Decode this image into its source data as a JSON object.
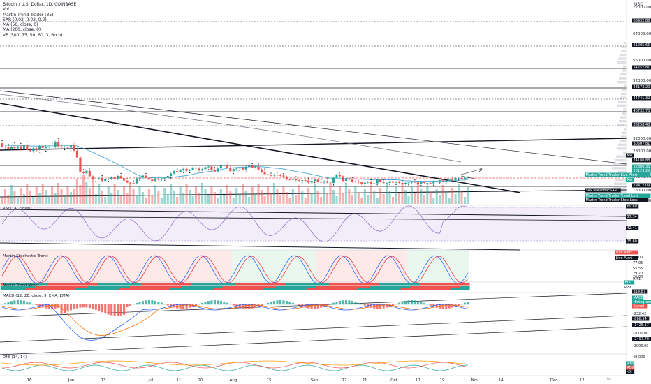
{
  "symbol_title": "Bitcoin / U.S. Dollar, 1D, COINBASE",
  "currency": "USD",
  "indicators": [
    "Vol",
    "Martin Trend Trader (35)",
    "SAR (0.02, 0.02, 0.2)",
    "MA (50, close, 0)",
    "MA (200, close, 0)",
    "VP (500, 75, 50, 60, 3, Both)"
  ],
  "panes": {
    "rsi": "RSI (14, close)",
    "stoch": "Martin Stochastic Trend",
    "meter": "Martin Trend Meter",
    "macd": "MACD (12, 26, close, 9, EMA, EMA)",
    "dmi": "DMI (14, 14)"
  },
  "colors": {
    "up": "#26a69a",
    "down": "#ef5350",
    "ma50": "#4aa8d8",
    "ma200": "#787b86",
    "rsi_line": "#7e57c2",
    "stoch_k": "#2962ff",
    "stoch_d": "#f23645",
    "macd_line": "#2962ff",
    "signal_line": "#ff6d00",
    "label_teal": "#26a69a",
    "label_dark": "#131722"
  },
  "chart_data": {
    "type": "candlestick",
    "price_axis": {
      "ticks": [
        "72000.00",
        "64000.00",
        "56000.00",
        "52000.00",
        "32000.00",
        "28000.00",
        "20000.00",
        "16000.00",
        "12000.00"
      ],
      "scale": "log"
    },
    "price_labels": [
      {
        "text": "68932.86",
        "style": "dark"
      },
      {
        "text": "61205.66",
        "style": "dark"
      },
      {
        "text": "54257.81",
        "style": "dark"
      },
      {
        "text": "48173.20",
        "style": "dark"
      },
      {
        "text": "44741.32",
        "style": "dark"
      },
      {
        "text": "40732.73",
        "style": "dark"
      },
      {
        "text": "36258.48",
        "style": "dark"
      },
      {
        "text": "30507.81",
        "style": "dark"
      },
      {
        "text": "24180.88",
        "style": "dark"
      },
      {
        "text": "22880.33",
        "style": "teal"
      },
      {
        "text": "20129.25",
        "style": "teal"
      },
      {
        "text": "19417.09",
        "style": "dark"
      },
      {
        "text": "MA",
        "style": "dark"
      },
      {
        "text": "MA",
        "style": "teal"
      },
      {
        "text": "SAR:ParabolicSAR",
        "style": "dark"
      },
      {
        "text": "Martin Trend Trader:Trend Line",
        "style": "teal"
      },
      {
        "text": "Martin Trend Trader:Stop Loss",
        "style": "dark"
      },
      {
        "text": "Martin Trend Trader Live Alert",
        "style": "teal"
      }
    ],
    "rsi_axis": {
      "labels": [
        "69.60",
        "57.34",
        "42.41",
        "25.60"
      ],
      "levels": [
        70,
        30
      ]
    },
    "stoch_axis": {
      "labels": [
        "Live alert",
        "Live Alert",
        "80.00",
        "77.95",
        "55.55",
        "29.70",
        "20.00",
        "9.41"
      ]
    },
    "meter_axis": {
      "labels": [
        "Bull",
        "Plot"
      ]
    },
    "macd_axis": {
      "labels": [
        "814.87",
        "MACD",
        "Histogram",
        "Signal",
        "-232.42",
        "-868.54",
        "-1425.17",
        "-2000.00",
        "-2497.70",
        "-3000.00"
      ]
    },
    "dmi_axis": {
      "labels": [
        "40.000",
        "+DI",
        "ADX",
        "-DI"
      ]
    },
    "x_ticks": [
      "16",
      "Jun",
      "13",
      "Jul",
      "11",
      "20",
      "Aug",
      "15",
      "Sep",
      "12",
      "21",
      "Oct",
      "10",
      "19",
      "Nov",
      "14",
      "Dec",
      "12",
      "21"
    ],
    "closes": [
      30000,
      29800,
      29400,
      30000,
      29500,
      30100,
      29200,
      30400,
      29000,
      28700,
      29500,
      29100,
      30200,
      29600,
      29800,
      30000,
      29800,
      31400,
      30100,
      29800,
      30000,
      29700,
      30500,
      28800,
      26800,
      22500,
      22100,
      22800,
      21200,
      20400,
      20500,
      20700,
      19800,
      20300,
      20400,
      21000,
      20300,
      21300,
      20600,
      19900,
      19300,
      19200,
      19100,
      20500,
      20800,
      21400,
      20700,
      20200,
      19800,
      20500,
      20200,
      20500,
      20700,
      21300,
      22000,
      22700,
      22500,
      23000,
      23400,
      22800,
      23100,
      23800,
      23500,
      22900,
      23300,
      23900,
      24100,
      23000,
      22600,
      23500,
      24300,
      24400,
      23800,
      22700,
      23300,
      23500,
      23700,
      23200,
      24000,
      24300,
      23800,
      24000,
      23200,
      22500,
      21800,
      21500,
      21400,
      21600,
      21500,
      21400,
      21100,
      20300,
      20100,
      20300,
      20000,
      19800,
      20000,
      19900,
      19300,
      19800,
      20200,
      19600,
      19300,
      19700,
      19300,
      19200,
      20800,
      21600,
      21200,
      19800,
      20500,
      20200,
      19500,
      19600,
      19400,
      18900,
      19300,
      19500,
      19000,
      19100,
      20200,
      19500,
      19200,
      19200,
      19700,
      19300,
      19600,
      19200,
      18800,
      19200,
      19300,
      19500,
      19400,
      19000,
      19500,
      19200,
      19200,
      19100,
      19600,
      19700,
      20000,
      19800,
      19800,
      20200,
      20000,
      20700,
      20700,
      20300,
      20800,
      20800
    ]
  }
}
